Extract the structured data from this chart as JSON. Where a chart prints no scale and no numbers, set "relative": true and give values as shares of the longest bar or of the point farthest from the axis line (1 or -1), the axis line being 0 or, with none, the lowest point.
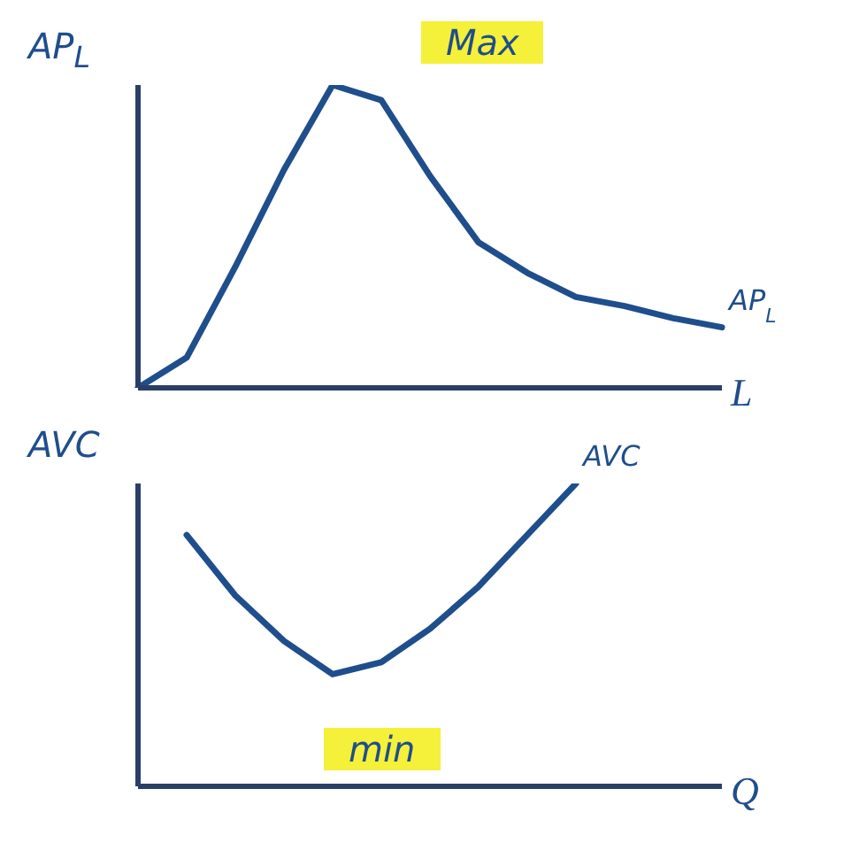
{
  "chart_data": [
    {
      "type": "line",
      "ylabel": "AP$_{L}$",
      "xlabel": "L",
      "relative": true,
      "tick_labels": false,
      "annotations": [
        "Max"
      ],
      "categories": [
        null,
        null,
        null,
        null,
        null,
        null,
        null,
        null,
        null,
        null,
        null,
        null,
        null
      ],
      "series": [
        {
          "name": "AP$_{L}$",
          "color": "#1f4e8c",
          "values": [
            0,
            0.1,
            0.4,
            0.72,
            1,
            0.95,
            0.7,
            0.48,
            0.38,
            0.3,
            0.27,
            0.23,
            0.2
          ]
        }
      ]
    },
    {
      "type": "line",
      "ylabel": "AVC",
      "xlabel": "Q",
      "relative": true,
      "tick_labels": false,
      "annotations": [
        "min"
      ],
      "categories": [
        null,
        null,
        null,
        null,
        null,
        null,
        null,
        null,
        null,
        null,
        null,
        null,
        null
      ],
      "series": [
        {
          "name": "AVC",
          "color": "#1f4e8c",
          "values": [
            null,
            0.83,
            0.63,
            0.48,
            0.37,
            0.41,
            0.52,
            0.66,
            0.83,
            1,
            null,
            null,
            null
          ]
        }
      ]
    }
  ]
}
